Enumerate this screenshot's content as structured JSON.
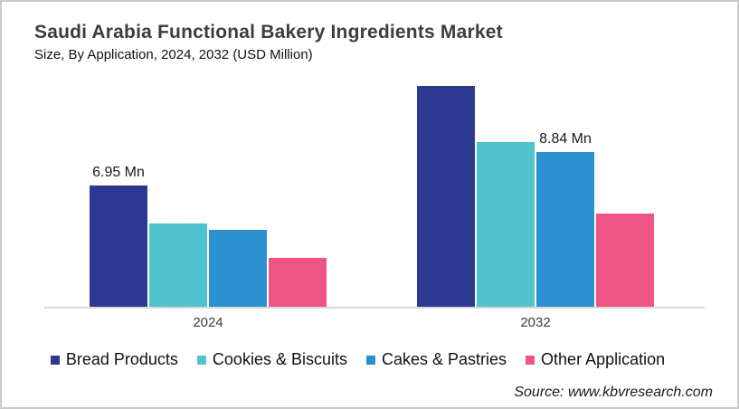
{
  "header": {
    "title": "Saudi Arabia Functional Bakery Ingredients Market",
    "subtitle": "Size, By Application, 2024, 2032 (USD Million)"
  },
  "chart_data": {
    "type": "bar",
    "title": "Saudi Arabia Functional Bakery Ingredients Market Size, By Application, 2024, 2032 (USD Million)",
    "categories": [
      "2024",
      "2032"
    ],
    "series": [
      {
        "name": "Bread Products",
        "color": "#2B3A90",
        "values": [
          6.95,
          12.65
        ],
        "labels": [
          "6.95 Mn",
          ""
        ]
      },
      {
        "name": "Cookies & Biscuits",
        "color": "#4FC3CE",
        "values": [
          4.75,
          9.45
        ],
        "labels": [
          "",
          ""
        ]
      },
      {
        "name": "Cakes & Pastries",
        "color": "#2B90D0",
        "values": [
          4.39,
          8.84
        ],
        "labels": [
          "",
          "8.84 Mn"
        ]
      },
      {
        "name": "Other Application",
        "color": "#EE5585",
        "values": [
          2.79,
          5.32
        ],
        "labels": [
          "",
          ""
        ]
      }
    ],
    "unit": "USD Million",
    "xlabel": "",
    "ylabel": "",
    "ylim": [
      0,
      12.7
    ],
    "grid": false,
    "legend_position": "bottom",
    "y_axis_visible": false
  },
  "source": {
    "label": "Source: www.kbvresearch.com"
  }
}
